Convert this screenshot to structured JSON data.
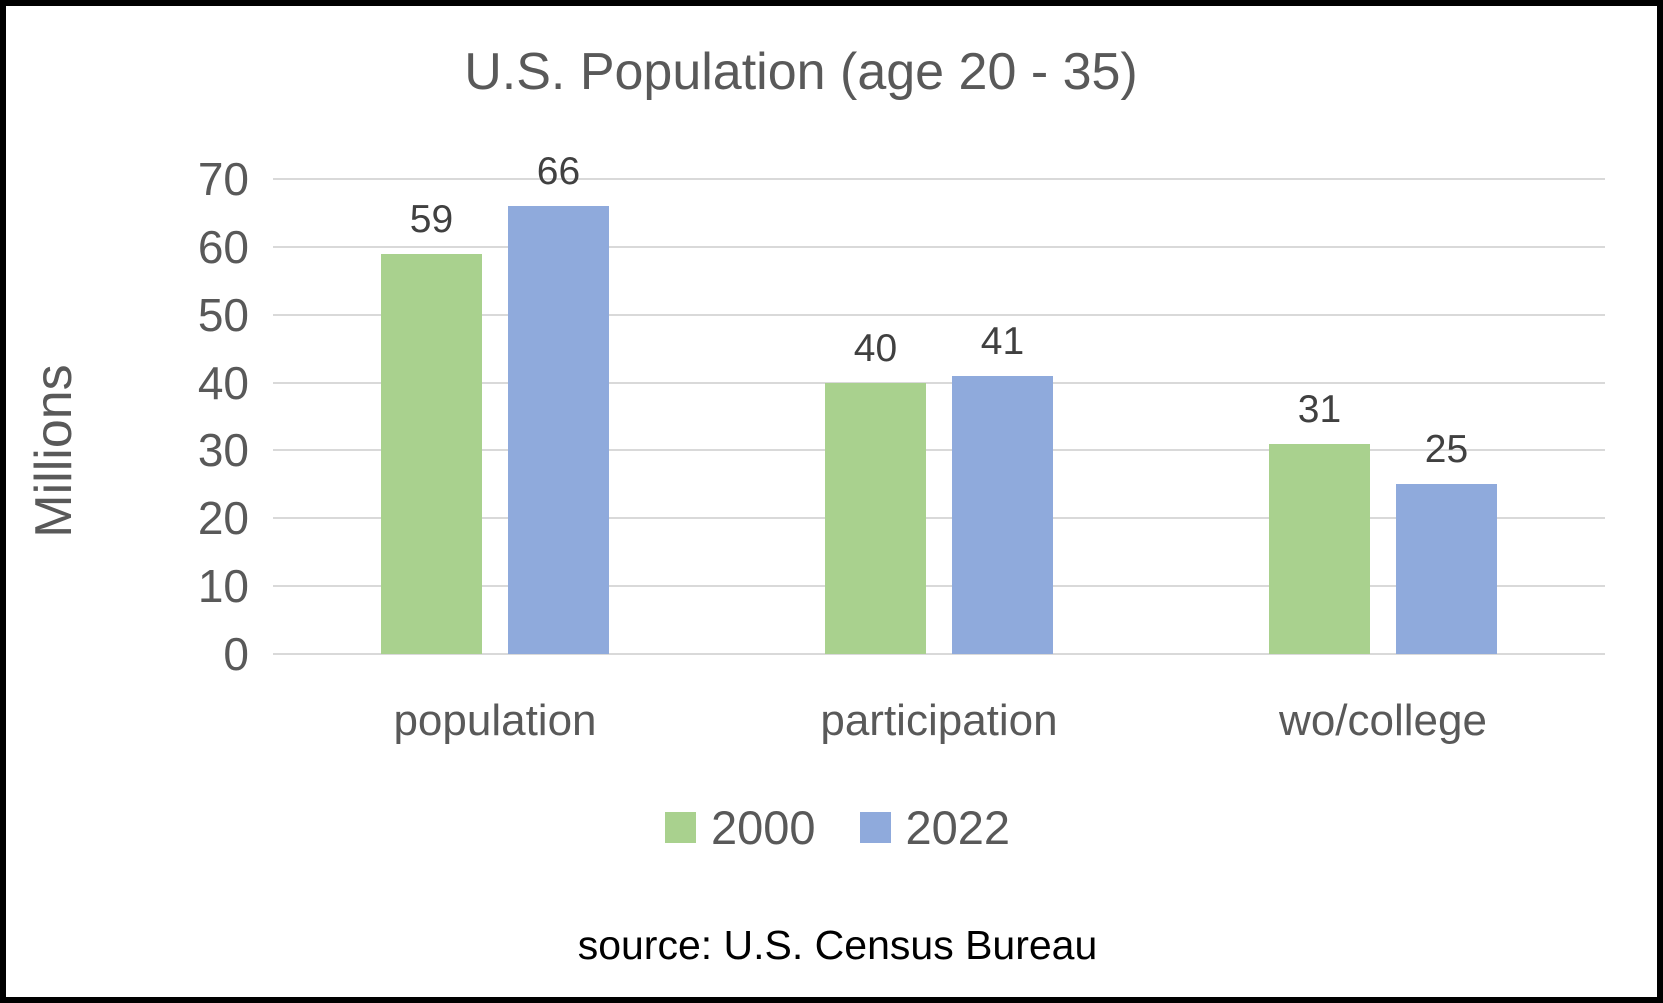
{
  "title": "U.S. Population (age 20 - 35)",
  "source_caption": "source: U.S. Census Bureau",
  "chart_data": {
    "type": "bar",
    "title": "U.S. Population (age 20 - 35)",
    "categories": [
      "population",
      "participation",
      "wo/college"
    ],
    "series": [
      {
        "name": "2000",
        "color": "#A9D18E",
        "values": [
          59,
          40,
          31
        ]
      },
      {
        "name": "2022",
        "color": "#8FAADC",
        "values": [
          66,
          41,
          25
        ]
      }
    ],
    "xlabel": "",
    "ylabel": "Millions",
    "ylim": [
      0,
      70
    ],
    "ytick_step": 10,
    "yticks": [
      0,
      10,
      20,
      30,
      40,
      50,
      60,
      70
    ],
    "grid": true,
    "data_labels": true,
    "legend_position": "bottom",
    "annotation": "source: U.S. Census Bureau"
  },
  "style": {
    "axis_text_color": "#595959",
    "data_label_color": "#404040",
    "gridline_color": "#D9D9D9",
    "source_text_color": "#000000",
    "frame_border_color": "#000000",
    "background_color": "#FFFFFF"
  }
}
